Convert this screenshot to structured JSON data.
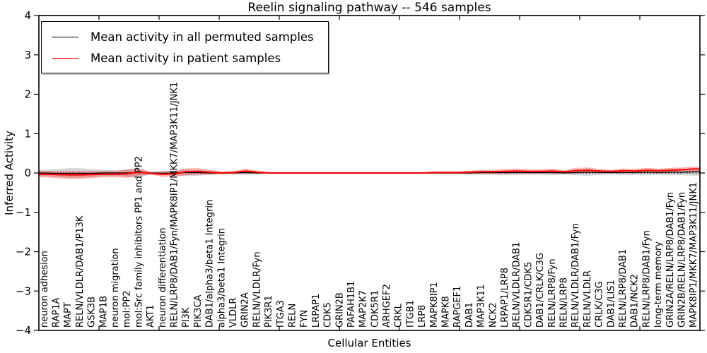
{
  "chart_data": {
    "type": "line",
    "title": "Reelin signaling pathway -- 546 samples",
    "xlabel": "Cellular Entities",
    "ylabel": "Inferred Activity",
    "ylim": [
      -4,
      4
    ],
    "grid": false,
    "legend_position": "upper left",
    "yticks": [
      4,
      3,
      2,
      1,
      0,
      -1,
      -2,
      -3,
      -4
    ],
    "ytick_labels": [
      "4",
      "3",
      "2",
      "1",
      "0",
      "−1",
      "−2",
      "−3",
      "−4"
    ],
    "legend": [
      {
        "label": "Mean activity in all permuted samples",
        "color": "#000000"
      },
      {
        "label": "Mean activity in patient samples",
        "color": "#ff0000"
      }
    ],
    "zero_reference": 0,
    "categories": [
      "neuron adhesion",
      "RAP1A",
      "MAPT",
      "RELN/VLDLR/DAB1/P13K",
      "GSK3B",
      "MAP1B",
      "neuron migration",
      "mol:PP2",
      "mol:Src family inhibitors PP1 and PP2",
      "AKT1",
      "neuron differentiation",
      "RELN/LRP8/DAB1/Fyn/MAPK8IP1/MKK7/MAP3K11/JNK1",
      "PI3K",
      "PIK3CA",
      "DAB1/alpha3/beta1 Integrin",
      "alpha3/beta1 Integrin",
      "VLDLR",
      "GRIN2A",
      "RELN/VLDLR/Fyn",
      "PIK3R1",
      "ITGA3",
      "RELN",
      "FYN",
      "LRPAP1",
      "CDK5",
      "GRIN2B",
      "PAFAH1B1",
      "MAP2K7",
      "CDK5R1",
      "ARHGEF2",
      "CRKL",
      "ITGB1",
      "LRP8",
      "MAPK8IP1",
      "MAPK8",
      "RAPGEF1",
      "DAB1",
      "MAP3K11",
      "NCK2",
      "LRPAP1/LRP8",
      "RELN/VLDLR/DAB1",
      "CDK5R1/CDK5",
      "DAB1/CRLK/C3G",
      "RELN/LRP8/Fyn",
      "RELN/LRP8",
      "RELN/VLDLR/DAB1/Fyn",
      "RELN/VLDLR",
      "CRLK/C3G",
      "DAB1/LIS1",
      "RELN/LRP8/DAB1",
      "DAB1/NCK2",
      "RELN/LRP8/DAB1/Fyn",
      "long-term memory",
      "GRIN2A/RELN/LRP8/DAB1/Fyn",
      "GRIN2B/RELN/LRP8/DAB1/Fyn",
      "MAPK8IP1/MKK7/MAP3K11/JNK1"
    ],
    "series": [
      {
        "name": "Mean activity in all permuted samples",
        "color": "#000000",
        "style": "solid",
        "values": [
          0,
          -0.01,
          -0.01,
          -0.01,
          -0.01,
          0,
          0,
          0,
          0.01,
          0,
          -0.01,
          0,
          0.01,
          0.01,
          0,
          0,
          0,
          0.01,
          0,
          0,
          0,
          0,
          0,
          0,
          0,
          0,
          0,
          0,
          0,
          0,
          0,
          0,
          0,
          0,
          0,
          0,
          0,
          0.01,
          0.01,
          0.01,
          0.01,
          0.01,
          0.01,
          0.01,
          0,
          0.01,
          0.02,
          0.01,
          0.01,
          0.01,
          0.01,
          0.02,
          0.01,
          0.02,
          0.02,
          0.03
        ]
      },
      {
        "name": "Mean activity in patient samples",
        "color": "#ff0000",
        "style": "solid",
        "values": [
          -0.03,
          -0.04,
          -0.05,
          -0.05,
          -0.04,
          -0.03,
          -0.03,
          -0.02,
          0.02,
          -0.01,
          -0.03,
          -0.02,
          0.03,
          0.04,
          0.02,
          0,
          0.01,
          0.05,
          0.02,
          0,
          0,
          0,
          0,
          0,
          0,
          0,
          0,
          0,
          0,
          0,
          0,
          0,
          0,
          0.01,
          0.01,
          0.01,
          0.02,
          0.03,
          0.03,
          0.04,
          0.05,
          0.04,
          0.04,
          0.05,
          0.03,
          0.06,
          0.07,
          0.05,
          0.04,
          0.06,
          0.05,
          0.07,
          0.06,
          0.07,
          0.08,
          0.1
        ]
      }
    ],
    "bands": [
      {
        "name": "permuted-range",
        "color": "#999999",
        "opacity": 0.4,
        "upper": [
          0.08,
          0.1,
          0.12,
          0.12,
          0.1,
          0.08,
          0.07,
          0.1,
          0.12,
          0.03,
          0.06,
          0.06,
          0.08,
          0.07,
          0.05,
          0.03,
          0.03,
          0.05,
          0.03,
          0.02,
          0.02,
          0.02,
          0.02,
          0.02,
          0.02,
          0.02,
          0.02,
          0.02,
          0.02,
          0.02,
          0.02,
          0.02,
          0.02,
          0.03,
          0.03,
          0.03,
          0.04,
          0.05,
          0.05,
          0.06,
          0.06,
          0.05,
          0.05,
          0.06,
          0.04,
          0.06,
          0.07,
          0.05,
          0.04,
          0.05,
          0.05,
          0.06,
          0.05,
          0.06,
          0.06,
          0.07
        ],
        "lower": [
          -0.08,
          -0.1,
          -0.12,
          -0.12,
          -0.1,
          -0.08,
          -0.07,
          -0.1,
          -0.12,
          -0.03,
          -0.06,
          -0.06,
          -0.08,
          -0.07,
          -0.05,
          -0.03,
          -0.03,
          -0.05,
          -0.03,
          -0.02,
          -0.02,
          -0.02,
          -0.02,
          -0.02,
          -0.02,
          -0.02,
          -0.02,
          -0.02,
          -0.02,
          -0.02,
          -0.02,
          -0.02,
          -0.02,
          -0.03,
          -0.03,
          -0.03,
          -0.04,
          -0.05,
          -0.05,
          -0.06,
          -0.06,
          -0.05,
          -0.05,
          -0.06,
          -0.04,
          -0.06,
          -0.07,
          -0.05,
          -0.04,
          -0.05,
          -0.05,
          -0.06,
          -0.05,
          -0.06,
          -0.06,
          -0.07
        ]
      },
      {
        "name": "patient-range",
        "color": "#ff0000",
        "opacity": 0.3,
        "upper": [
          0.05,
          0.05,
          0.05,
          0.05,
          0.05,
          0.05,
          0.05,
          0.08,
          0.11,
          0.02,
          0.04,
          0.05,
          0.12,
          0.12,
          0.08,
          0.03,
          0.05,
          0.11,
          0.06,
          0.02,
          0.02,
          0.02,
          0.02,
          0.02,
          0.02,
          0.02,
          0.02,
          0.02,
          0.02,
          0.02,
          0.02,
          0.02,
          0.02,
          0.04,
          0.04,
          0.04,
          0.06,
          0.08,
          0.08,
          0.1,
          0.11,
          0.09,
          0.09,
          0.11,
          0.07,
          0.13,
          0.14,
          0.1,
          0.08,
          0.11,
          0.1,
          0.13,
          0.11,
          0.13,
          0.14,
          0.16
        ],
        "lower": [
          -0.11,
          -0.13,
          -0.15,
          -0.15,
          -0.13,
          -0.11,
          -0.11,
          -0.12,
          -0.07,
          -0.04,
          -0.1,
          -0.09,
          -0.06,
          -0.04,
          -0.04,
          -0.03,
          -0.03,
          -0.01,
          -0.02,
          -0.02,
          -0.02,
          -0.02,
          -0.02,
          -0.02,
          -0.02,
          -0.02,
          -0.02,
          -0.02,
          -0.02,
          -0.02,
          -0.02,
          -0.02,
          -0.02,
          -0.02,
          -0.02,
          -0.02,
          -0.02,
          -0.02,
          -0.02,
          -0.02,
          -0.01,
          -0.01,
          -0.01,
          -0.01,
          -0.01,
          -0.01,
          0,
          0,
          0,
          0.01,
          0,
          0.01,
          0.01,
          0.01,
          0.02,
          0.04
        ]
      }
    ]
  }
}
